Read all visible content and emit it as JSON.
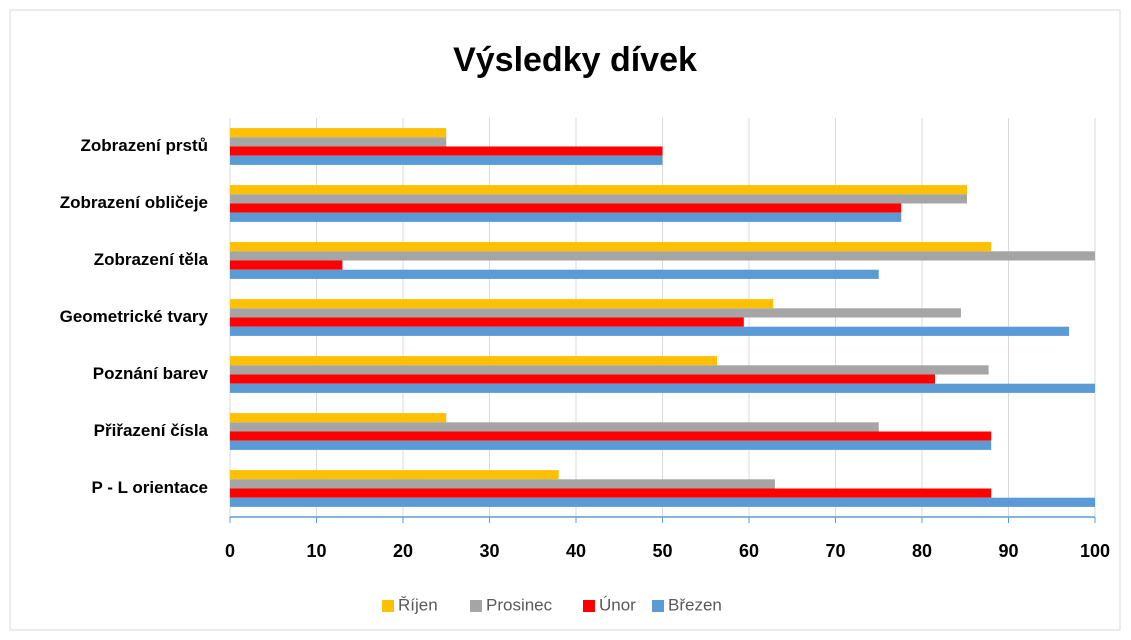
{
  "chart_data": {
    "type": "barh",
    "title": "Výsledky dívek",
    "categories": [
      "Zobrazení prstů",
      "Zobrazení obličeje",
      "Zobrazení těla",
      "Geometrické tvary",
      "Poznání barev",
      "Přiřazení čísla",
      "P - L orientace"
    ],
    "series": [
      {
        "name": "Říjen",
        "color": "#ffc000",
        "values": [
          25,
          85.2,
          88,
          62.8,
          56.3,
          25,
          38
        ]
      },
      {
        "name": "Prosinec",
        "color": "#a5a5a5",
        "values": [
          25,
          85.2,
          100,
          84.5,
          87.7,
          75,
          63
        ]
      },
      {
        "name": "Únor",
        "color": "#ff0000",
        "values": [
          50,
          77.6,
          13,
          59.4,
          81.5,
          88,
          88
        ]
      },
      {
        "name": "Březen",
        "color": "#5b9bd5",
        "values": [
          50,
          77.6,
          75,
          97,
          100,
          88,
          100
        ]
      }
    ],
    "xlim": [
      0,
      100
    ],
    "xticks": [
      0,
      10,
      20,
      30,
      40,
      50,
      60,
      70,
      80,
      90,
      100
    ],
    "grid": true,
    "legend": "bottom"
  }
}
